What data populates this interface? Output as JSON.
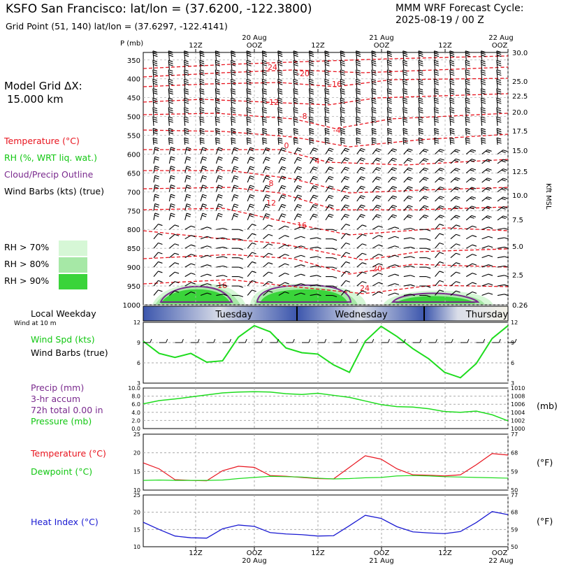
{
  "header": {
    "title": "KSFO San Francisco:  lat/lon = (37.6200, -122.3800)",
    "subtitle": "Grid Point (51, 140) lat/lon = (37.6297, -122.4141)",
    "cycle_line1": "MMM WRF Forecast Cycle:",
    "cycle_line2": "2025-08-19 / 00  Z"
  },
  "left_panel": {
    "grid_label": "Model Grid ΔX:",
    "grid_value": "15.000 km",
    "legend": [
      {
        "text": "Temperature (°C)",
        "color": "#e8141e"
      },
      {
        "text": "RH (%, WRT liq. wat.)",
        "color": "#12c712"
      },
      {
        "text": "Cloud/Precip Outline",
        "color": "#7a2a8e"
      },
      {
        "text": "Wind Barbs (kts) (true)",
        "color": "#000000"
      }
    ],
    "rh_legend": [
      {
        "text": "RH > 70%",
        "color": "#d6f7d6"
      },
      {
        "text": "RH > 80%",
        "color": "#a6e8a6"
      },
      {
        "text": "RH > 90%",
        "color": "#3ad43a"
      }
    ]
  },
  "colors": {
    "temp": "#e8141e",
    "rh": "#12c712",
    "cloud": "#7a2a8e",
    "heat": "#1a1ad2",
    "wind": "#1edc1e"
  },
  "x_axis": {
    "top_dates": [
      "20 Aug",
      "21 Aug",
      "22 Aug"
    ],
    "top_ticks": [
      "12Z",
      "OOZ",
      "12Z",
      "OOZ",
      "12Z",
      "OOZ"
    ],
    "bottom_ticks": [
      "12Z",
      "OOZ",
      "12Z",
      "OOZ",
      "12Z",
      "OOZ"
    ],
    "bottom_dates": [
      "20 Aug",
      "21 Aug",
      "22 Aug"
    ]
  },
  "weekday_bar": {
    "label": "Local Weekday",
    "sublabel": "Wind at 10 m",
    "days": [
      "Tuesday",
      "Wednesday",
      "Thursday"
    ]
  },
  "chart_data": [
    {
      "type": "line",
      "panel": "cross-section",
      "ylabel": "P (mb)",
      "right_label": "Kft MSL",
      "y_ticks": [
        350,
        400,
        450,
        500,
        550,
        600,
        650,
        700,
        750,
        800,
        850,
        900,
        950,
        1000
      ],
      "right_ticks": [
        "30.0",
        "25.0",
        "22.5",
        "20.0",
        "17.5",
        "15.0",
        "12.5",
        "10.0",
        "7.5",
        "5.0",
        "2.5",
        "0.26"
      ],
      "temperature_labels": [
        "-24",
        "-20",
        "-16",
        "-12",
        "-8",
        "-4",
        "0",
        "4",
        "8",
        "12",
        "16",
        "20",
        "24",
        "16"
      ],
      "ylim": [
        1000,
        330
      ]
    },
    {
      "type": "line",
      "panel": "wind",
      "series": [
        {
          "name": "Wind Spd (kts)",
          "values": [
            9.2,
            7.4,
            6.8,
            7.4,
            6.1,
            6.3,
            9.8,
            11.5,
            10.6,
            8.2,
            7.5,
            7.3,
            5.7,
            4.6,
            9.2,
            11.4,
            9.9,
            8.1,
            6.6,
            4.6,
            3.8,
            5.9,
            9.6,
            11.5
          ]
        }
      ],
      "label_lines": [
        "Wind Spd (kts)",
        "Wind Barbs (true)"
      ],
      "ylim": [
        3,
        12
      ],
      "y_ticks": [
        3,
        6,
        9,
        12
      ]
    },
    {
      "type": "line",
      "panel": "precip-pressure",
      "series": [
        {
          "name": "Pressure (mb)",
          "values": [
            1006.1,
            1006.9,
            1007.3,
            1007.8,
            1008.3,
            1008.8,
            1009.0,
            1009.1,
            1009.0,
            1008.6,
            1008.4,
            1008.7,
            1008.2,
            1007.7,
            1006.8,
            1005.9,
            1005.4,
            1005.3,
            1004.9,
            1004.2,
            1004.0,
            1004.3,
            1003.4,
            1001.9
          ]
        }
      ],
      "label_lines": [
        "Precip (mm)",
        "3-hr accum",
        "72h total 0.00 in",
        "Pressure (mb)"
      ],
      "left_ticks": [
        "0.0",
        "2.0",
        "4.0",
        "6.0",
        "8.0",
        "10.0"
      ],
      "right_ticks": [
        "1000",
        "1002",
        "1004",
        "1006",
        "1008",
        "1010"
      ],
      "ylim": [
        1000,
        1010
      ],
      "unit": "(mb)"
    },
    {
      "type": "line",
      "panel": "temperature-dewpoint",
      "series": [
        {
          "name": "Temperature (°C)",
          "values": [
            17.3,
            15.7,
            12.8,
            12.6,
            12.5,
            15.2,
            16.4,
            16.1,
            13.9,
            13.7,
            13.4,
            13.1,
            13.0,
            16.1,
            19.2,
            18.3,
            15.7,
            14.1,
            14.0,
            13.8,
            14.1,
            16.8,
            19.8,
            19.4
          ]
        },
        {
          "name": "Dewpoint (°C)",
          "values": [
            12.6,
            12.7,
            12.6,
            12.6,
            12.6,
            12.7,
            13.1,
            13.4,
            13.7,
            13.6,
            13.5,
            13.2,
            13.0,
            13.1,
            13.3,
            13.4,
            13.8,
            13.9,
            13.8,
            13.6,
            13.5,
            13.4,
            13.3,
            13.2
          ]
        }
      ],
      "ylim": [
        10,
        25
      ],
      "left_ticks": [
        10,
        15,
        20,
        25
      ],
      "right_ticks": [
        50,
        59,
        68,
        77
      ],
      "unit": "(°F)"
    },
    {
      "type": "line",
      "panel": "heat-index",
      "series": [
        {
          "name": "Heat Index (°C)",
          "values": [
            17.1,
            15.0,
            13.1,
            12.6,
            12.5,
            15.2,
            16.3,
            15.9,
            14.1,
            13.7,
            13.5,
            13.1,
            13.2,
            16.1,
            19.1,
            18.2,
            15.8,
            14.3,
            14.0,
            13.8,
            14.4,
            17.0,
            20.2,
            19.3
          ]
        }
      ],
      "ylim": [
        10,
        25
      ],
      "left_ticks": [
        10,
        15,
        20,
        25
      ],
      "right_ticks": [
        50,
        59,
        68,
        77
      ],
      "unit": "(°F)"
    }
  ]
}
